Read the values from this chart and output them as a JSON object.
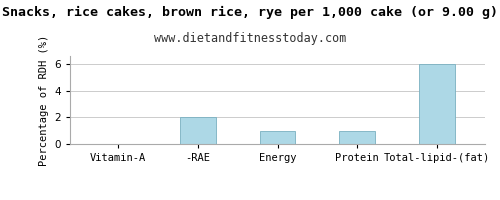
{
  "title": "Snacks, rice cakes, brown rice, rye per 1,000 cake (or 9.00 g)",
  "subtitle": "www.dietandfitnesstoday.com",
  "categories": [
    "Vitamin-A",
    "-RAE",
    "Energy",
    "Protein",
    "Total-lipid-(fat)"
  ],
  "values": [
    0.0,
    2.0,
    1.0,
    1.0,
    6.0
  ],
  "bar_color": "#add8e6",
  "bar_edge_color": "#7ab0c0",
  "ylabel": "Percentage of RDH (%)",
  "ylim": [
    0,
    6.6
  ],
  "yticks": [
    0,
    2,
    4,
    6
  ],
  "background_color": "#ffffff",
  "plot_bg_color": "#ffffff",
  "title_fontsize": 9.5,
  "subtitle_fontsize": 8.5,
  "ylabel_fontsize": 7.5,
  "tick_fontsize": 7.5,
  "grid_color": "#cccccc",
  "spine_color": "#aaaaaa"
}
